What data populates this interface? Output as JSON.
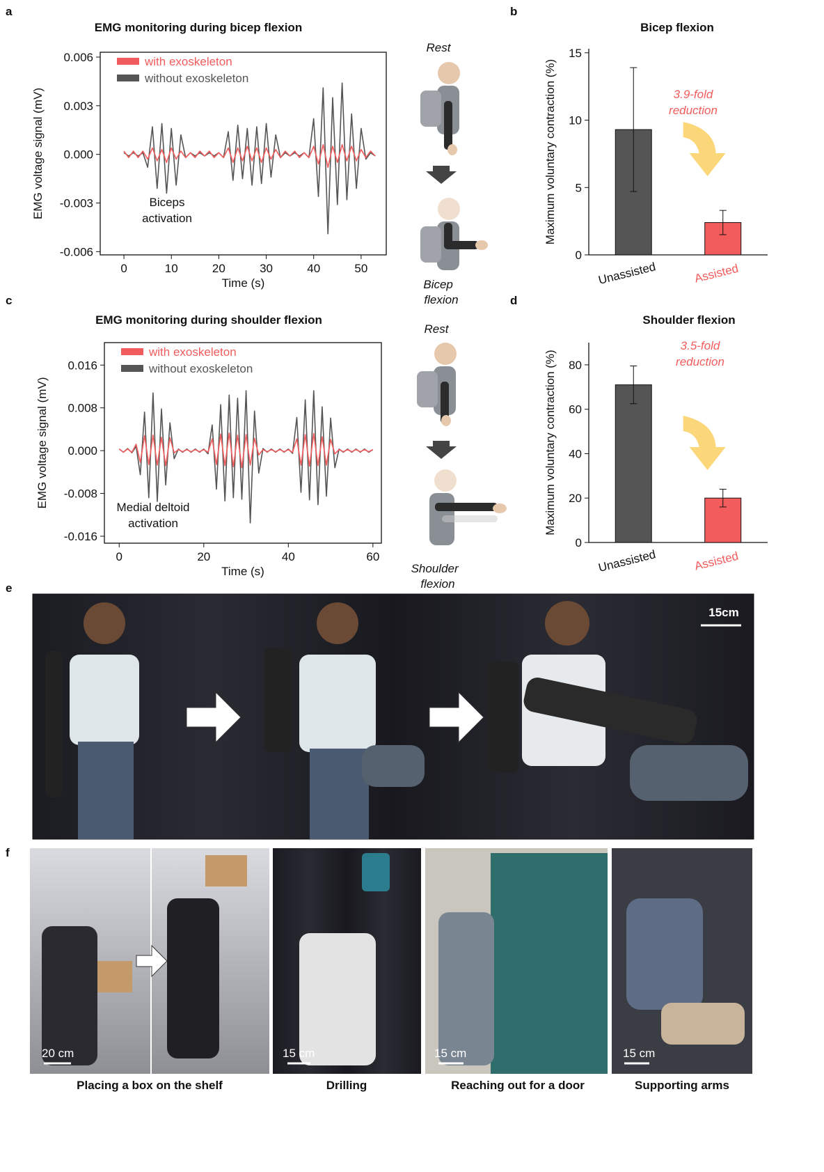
{
  "panel_labels": [
    "a",
    "b",
    "c",
    "d",
    "e",
    "f"
  ],
  "chart_data": [
    {
      "type": "line",
      "title": "EMG monitoring during bicep flexion",
      "xlabel": "Time (s)",
      "ylabel": "EMG voltage signal (mV)",
      "xlim": [
        -5,
        55.3
      ],
      "xticks": [
        0,
        10,
        20,
        30,
        40,
        50
      ],
      "ylim": [
        -0.0062,
        0.0063
      ],
      "yticks": [
        0.006,
        0.003,
        {
          "value": 0,
          "label": "0.000"
        },
        -0.003,
        -0.006
      ],
      "legend": "upper left",
      "annotation": [
        "Biceps",
        "activation"
      ],
      "x": [
        0,
        1,
        2,
        3,
        4,
        5,
        6,
        7,
        8,
        9,
        10,
        11,
        12,
        13,
        14,
        15,
        16,
        17,
        18,
        19,
        20,
        21,
        22,
        23,
        24,
        25,
        26,
        27,
        28,
        29,
        30,
        31,
        32,
        33,
        34,
        35,
        36,
        37,
        38,
        39,
        40,
        41,
        42,
        43,
        44,
        45,
        46,
        47,
        48,
        49,
        50,
        51,
        52,
        53
      ],
      "series": [
        {
          "name": "with exoskeleton",
          "color": "#f25c5c",
          "values": [
            0.0002,
            -0.0002,
            0.0002,
            -0.0002,
            0.0002,
            -0.0003,
            0.0004,
            -0.0004,
            0.0003,
            -0.0005,
            0.0004,
            -0.0003,
            0.0002,
            -0.0002,
            0.0001,
            -0.0002,
            0.0002,
            -0.0001,
            0.0002,
            -0.0002,
            0.0001,
            -0.0002,
            0.0004,
            -0.0005,
            0.0004,
            -0.0004,
            0.0005,
            -0.0004,
            0.0004,
            -0.0005,
            0.0004,
            -0.0003,
            0.0003,
            -0.0002,
            0.0002,
            -0.0001,
            0.0002,
            -0.0002,
            0.0001,
            -0.0002,
            0.0005,
            -0.0006,
            0.0006,
            -0.0008,
            0.0005,
            -0.0005,
            0.0006,
            -0.0004,
            0.0005,
            -0.0004,
            0.0003,
            -0.0002,
            0.0002,
            -0.0001
          ]
        },
        {
          "name": "without exoskeleton",
          "color": "#555555",
          "values": [
            0.0001,
            -0.0001,
            0.0001,
            -0.0001,
            0.0001,
            -0.0008,
            0.0017,
            -0.0021,
            0.0019,
            -0.0024,
            0.0016,
            -0.0019,
            0.0012,
            -0.0002,
            0.0001,
            -0.0001,
            0.0001,
            -0.0001,
            0.0001,
            -0.0001,
            0.0001,
            -0.0002,
            0.0014,
            -0.0016,
            0.0018,
            -0.0015,
            0.0016,
            -0.0019,
            0.0017,
            -0.0018,
            0.0019,
            -0.0014,
            0.0012,
            -0.0002,
            0.0001,
            -0.0001,
            0.0001,
            -0.0001,
            0.0001,
            -0.0002,
            0.0022,
            -0.0026,
            0.0041,
            -0.0049,
            0.0035,
            -0.0031,
            0.0044,
            -0.0028,
            0.0025,
            -0.0021,
            0.0016,
            -0.0003,
            0.0001,
            -0.0001
          ]
        }
      ]
    },
    {
      "type": "bar",
      "title": "Bicep flexion",
      "ylabel": "Maximum voluntary contraction (%)",
      "ylim": [
        0,
        15.3
      ],
      "yticks": [
        0,
        5,
        10,
        15
      ],
      "categories": [
        "Unassisted",
        "Assisted"
      ],
      "values": [
        9.3,
        2.4
      ],
      "errors": [
        4.6,
        0.9
      ],
      "colors": [
        "#555555",
        "#f25c5c"
      ],
      "annotation": [
        "3.9-fold",
        "reduction"
      ]
    },
    {
      "type": "line",
      "title": "EMG monitoring during shoulder flexion",
      "xlabel": "Time (s)",
      "ylabel": "EMG voltage signal (mV)",
      "xlim": [
        -3.5,
        62
      ],
      "xticks": [
        0,
        20,
        40,
        60
      ],
      "ylim": [
        -0.0173,
        0.0202
      ],
      "yticks": [
        0.016,
        0.008,
        {
          "value": 0,
          "label": "0.000"
        },
        -0.008,
        -0.016
      ],
      "legend": "upper left",
      "annotation": [
        "Medial deltoid",
        "activation"
      ],
      "x": [
        0,
        1,
        2,
        3,
        4,
        5,
        6,
        7,
        8,
        9,
        10,
        11,
        12,
        13,
        14,
        15,
        16,
        17,
        18,
        19,
        20,
        21,
        22,
        23,
        24,
        25,
        26,
        27,
        28,
        29,
        30,
        31,
        32,
        33,
        34,
        35,
        36,
        37,
        38,
        39,
        40,
        41,
        42,
        43,
        44,
        45,
        46,
        47,
        48,
        49,
        50,
        51,
        52,
        53,
        54,
        55,
        56,
        57,
        58,
        59,
        60
      ],
      "series": [
        {
          "name": "with exoskeleton",
          "color": "#f25c5c",
          "values": [
            0.0003,
            -0.0003,
            0.0003,
            -0.0003,
            0.0012,
            -0.0022,
            0.0028,
            -0.0026,
            0.0029,
            -0.0027,
            0.0025,
            -0.0028,
            0.0024,
            -0.0004,
            0.0002,
            -0.0002,
            0.0002,
            -0.0002,
            0.0002,
            -0.0002,
            0.0002,
            -0.0003,
            0.0022,
            -0.0026,
            0.0031,
            -0.0028,
            0.0033,
            -0.003,
            0.0029,
            -0.0032,
            0.003,
            -0.0027,
            0.0023,
            -0.0008,
            0.0002,
            -0.0002,
            0.0002,
            -0.0002,
            0.0002,
            -0.0002,
            0.0002,
            -0.0003,
            0.0022,
            -0.0027,
            0.003,
            -0.0029,
            0.0032,
            -0.0028,
            0.0026,
            -0.0027,
            0.0021,
            -0.0006,
            0.0002,
            -0.0002,
            0.0002,
            -0.0002,
            0.0002,
            -0.0002,
            0.0002,
            -0.0002,
            0.0002
          ]
        },
        {
          "name": "without exoskeleton",
          "color": "#555555",
          "values": [
            0.0003,
            -0.0003,
            0.0004,
            -0.0004,
            0.0008,
            -0.0045,
            0.0072,
            -0.0088,
            0.0108,
            -0.0095,
            0.0078,
            -0.0064,
            0.0052,
            -0.0015,
            0.0003,
            -0.0003,
            0.0003,
            -0.0003,
            0.0003,
            -0.0003,
            0.0003,
            -0.0006,
            0.0048,
            -0.0072,
            0.0086,
            -0.0094,
            0.0104,
            -0.0088,
            0.0098,
            -0.0091,
            0.0112,
            -0.0135,
            0.0074,
            -0.0042,
            0.0004,
            -0.0003,
            0.0003,
            -0.0003,
            0.0003,
            -0.0003,
            0.0003,
            -0.0005,
            0.0062,
            -0.0078,
            0.0095,
            -0.0092,
            0.0112,
            -0.0101,
            0.0082,
            -0.0085,
            0.0061,
            -0.0032,
            0.0003,
            -0.0003,
            0.0003,
            -0.0003,
            0.0003,
            -0.0003,
            0.0003,
            -0.0003,
            0.0002
          ]
        }
      ]
    },
    {
      "type": "bar",
      "title": "Shoulder flexion",
      "ylabel": "Maximum voluntary contraction (%)",
      "ylim": [
        0,
        90
      ],
      "yticks": [
        0,
        20,
        40,
        60,
        80
      ],
      "categories": [
        "Unassisted",
        "Assisted"
      ],
      "values": [
        71,
        20
      ],
      "errors": [
        8.5,
        4
      ],
      "colors": [
        "#555555",
        "#f25c5c"
      ],
      "annotation": [
        "3.5-fold",
        "reduction"
      ]
    }
  ],
  "illustrations": [
    {
      "top": "Rest",
      "bottom": [
        "Bicep",
        "flexion"
      ]
    },
    {
      "top": "Rest",
      "bottom": [
        "Shoulder",
        "flexion"
      ]
    }
  ],
  "photo_e": {
    "scale_bar": "15cm"
  },
  "photos_f": [
    {
      "caption": "Placing a box on the shelf",
      "scale_bar": "20 cm"
    },
    {
      "caption": "Drilling",
      "scale_bar": "15 cm"
    },
    {
      "caption": "Reaching out for a door",
      "scale_bar": "15 cm"
    },
    {
      "caption": "Supporting arms",
      "scale_bar": "15 cm"
    }
  ]
}
